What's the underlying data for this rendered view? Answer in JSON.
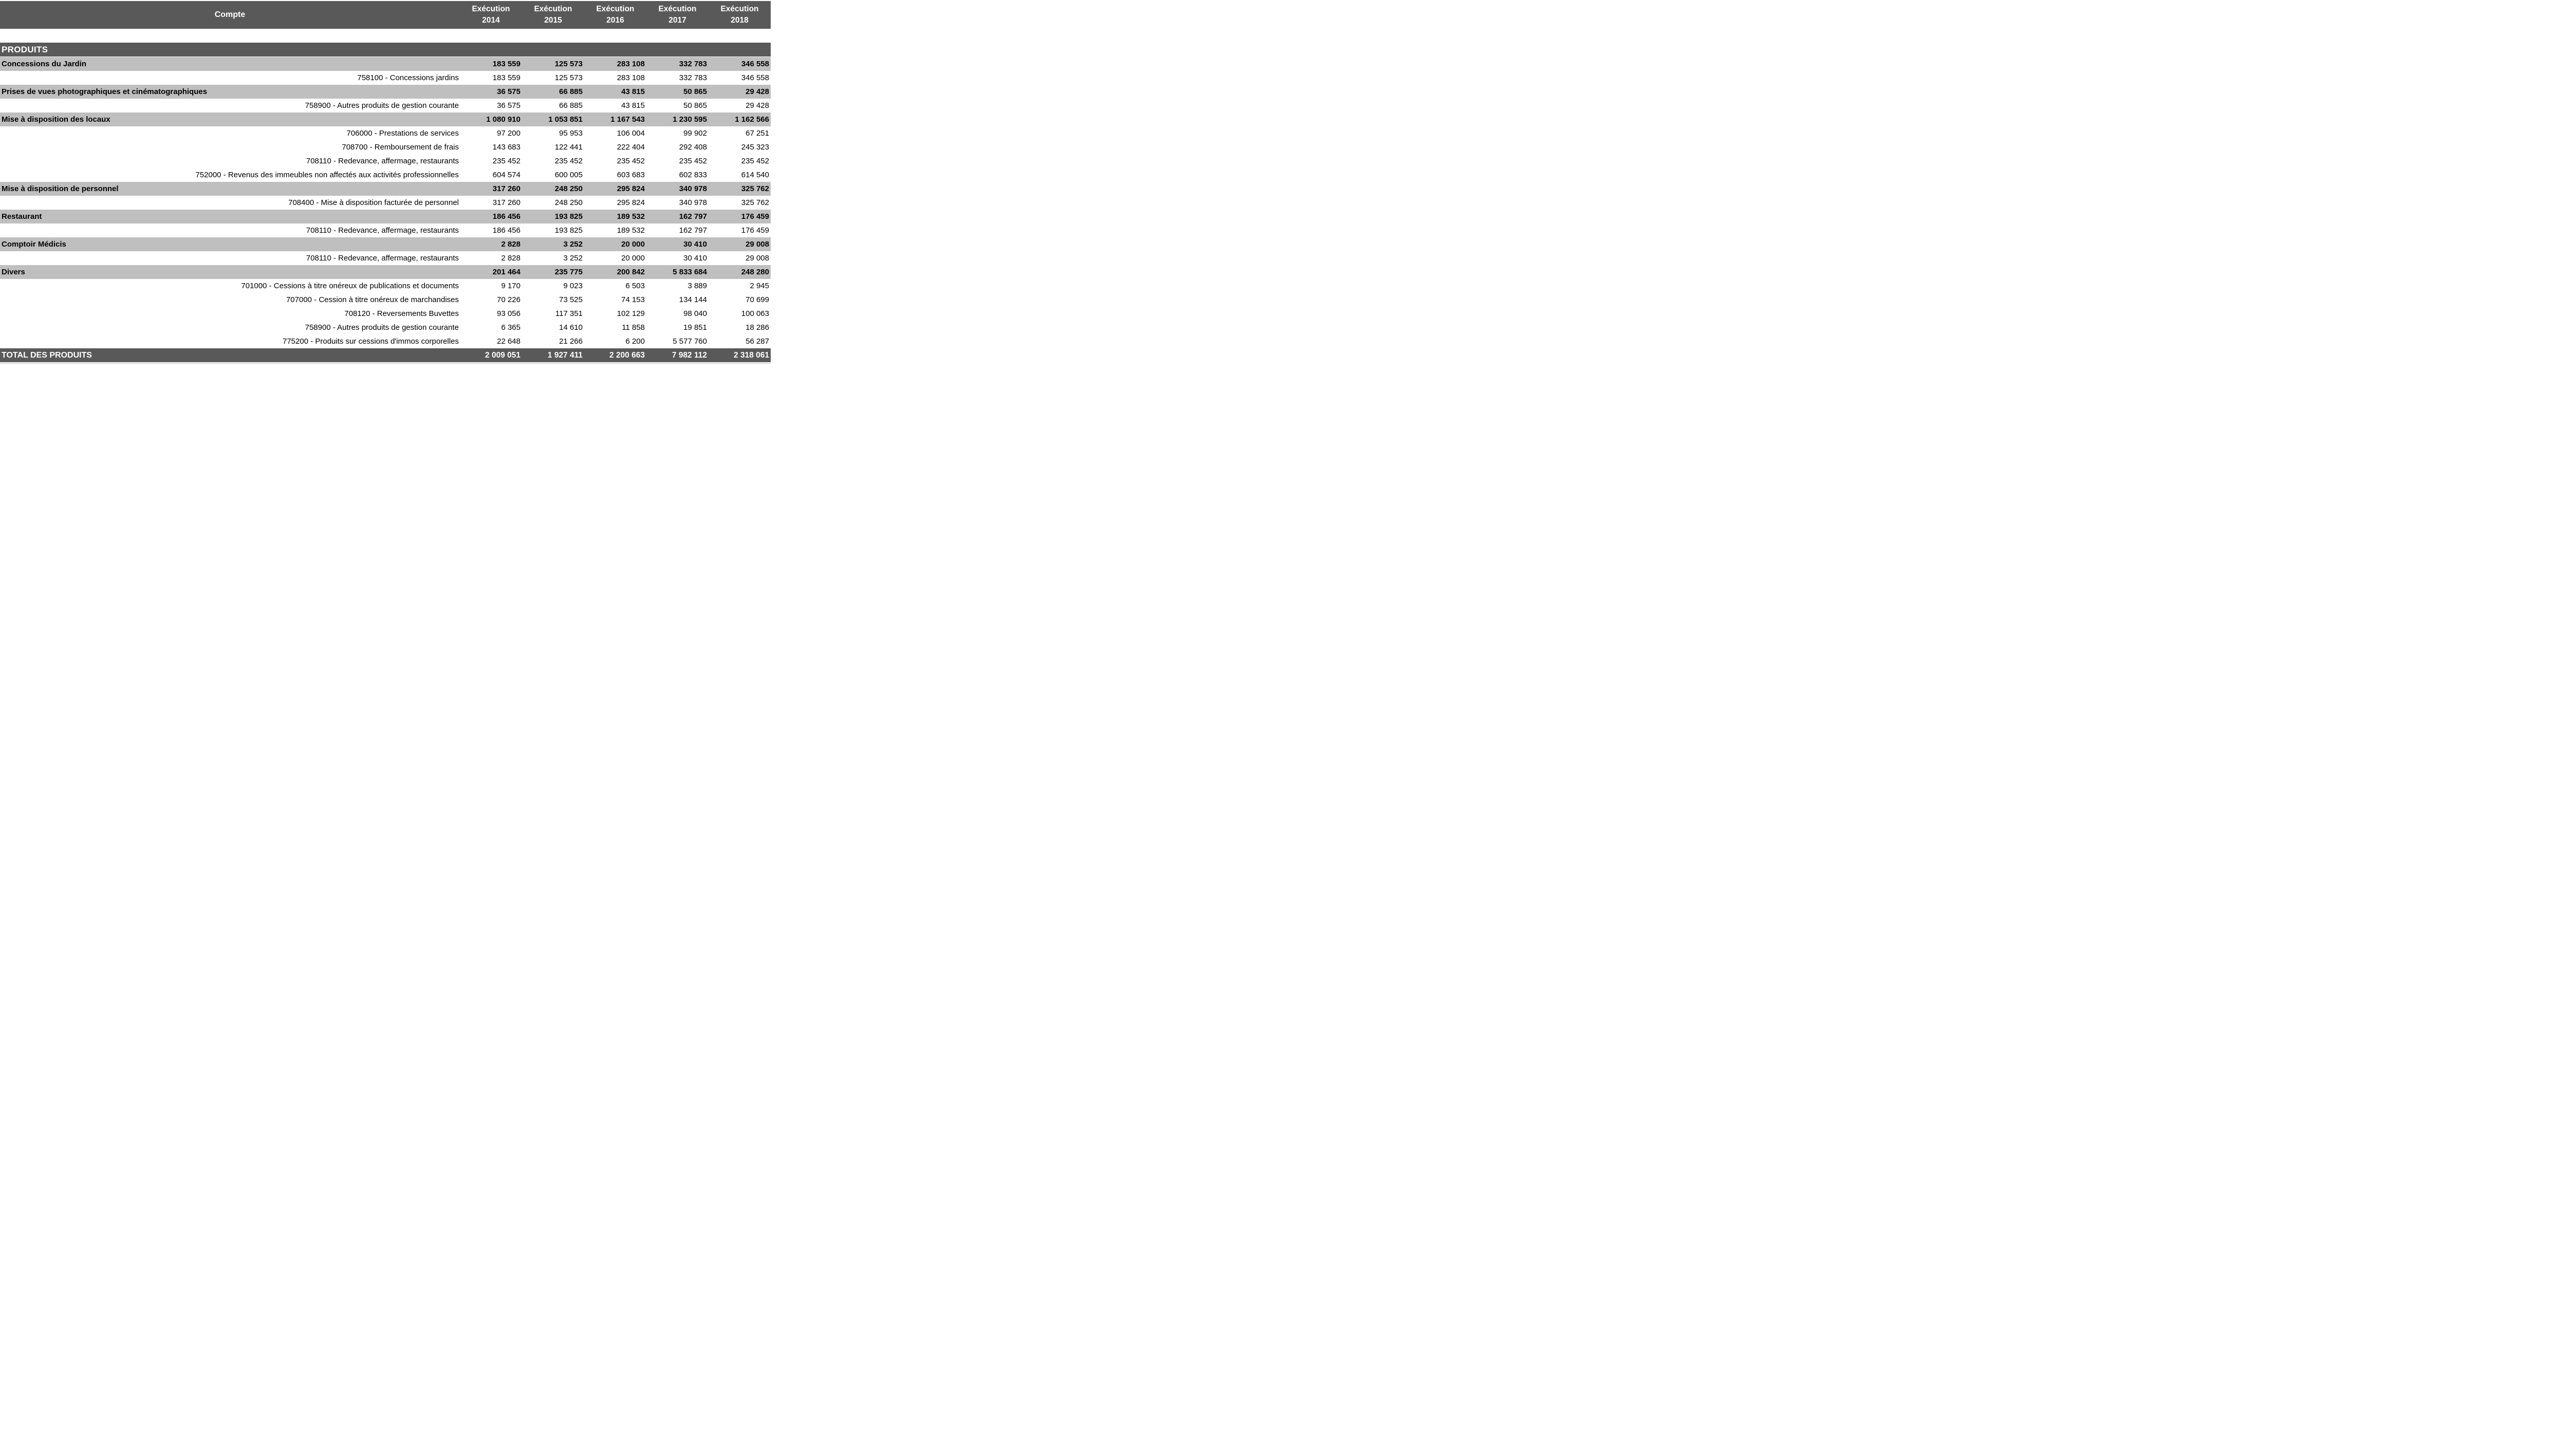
{
  "colors": {
    "header_bg": "#595959",
    "section_bg": "#595959",
    "total_bg": "#595959",
    "category_row_bg": "#bfbfbf",
    "detail_row_bg": "#ffffff",
    "header_text": "#ffffff",
    "body_text": "#000000",
    "bottom_rule": "#bfbfbf"
  },
  "table": {
    "account_column_header": "Compte",
    "execution_label": "Exécution",
    "years": [
      "2014",
      "2015",
      "2016",
      "2017",
      "2018"
    ],
    "section_header": "PRODUITS",
    "rows": [
      {
        "type": "category",
        "label": "Concessions du Jardin",
        "values": [
          "183 559",
          "125 573",
          "283 108",
          "332 783",
          "346 558"
        ]
      },
      {
        "type": "detail",
        "label": "758100 - Concessions jardins",
        "values": [
          "183 559",
          "125 573",
          "283 108",
          "332 783",
          "346 558"
        ]
      },
      {
        "type": "category",
        "label": "Prises de vues photographiques et cinématographiques",
        "values": [
          "36 575",
          "66 885",
          "43 815",
          "50 865",
          "29 428"
        ]
      },
      {
        "type": "detail",
        "label": "758900 - Autres produits de gestion courante",
        "values": [
          "36 575",
          "66 885",
          "43 815",
          "50 865",
          "29 428"
        ]
      },
      {
        "type": "category",
        "label": "Mise à disposition des locaux",
        "values": [
          "1 080 910",
          "1 053 851",
          "1 167 543",
          "1 230 595",
          "1 162 566"
        ]
      },
      {
        "type": "detail",
        "label": "706000 - Prestations de services",
        "values": [
          "97 200",
          "95 953",
          "106 004",
          "99 902",
          "67 251"
        ]
      },
      {
        "type": "detail",
        "label": "708700 - Remboursement de frais",
        "values": [
          "143 683",
          "122 441",
          "222 404",
          "292 408",
          "245 323"
        ]
      },
      {
        "type": "detail",
        "label": "708110 - Redevance, affermage, restaurants",
        "values": [
          "235 452",
          "235 452",
          "235 452",
          "235 452",
          "235 452"
        ]
      },
      {
        "type": "detail",
        "label": "752000 - Revenus des immeubles non affectés aux activités professionnelles",
        "values": [
          "604 574",
          "600 005",
          "603 683",
          "602 833",
          "614 540"
        ]
      },
      {
        "type": "category",
        "label": "Mise à disposition de personnel",
        "values": [
          "317 260",
          "248 250",
          "295 824",
          "340 978",
          "325 762"
        ]
      },
      {
        "type": "detail",
        "label": "708400 - Mise à disposition facturée de personnel",
        "values": [
          "317 260",
          "248 250",
          "295 824",
          "340 978",
          "325 762"
        ]
      },
      {
        "type": "category",
        "label": "Restaurant",
        "values": [
          "186 456",
          "193 825",
          "189 532",
          "162 797",
          "176 459"
        ]
      },
      {
        "type": "detail",
        "label": "708110 - Redevance, affermage, restaurants",
        "values": [
          "186 456",
          "193 825",
          "189 532",
          "162 797",
          "176 459"
        ]
      },
      {
        "type": "category",
        "label": "Comptoir Médicis",
        "values": [
          "2 828",
          "3 252",
          "20 000",
          "30 410",
          "29 008"
        ]
      },
      {
        "type": "detail",
        "label": "708110 - Redevance, affermage, restaurants",
        "values": [
          "2 828",
          "3 252",
          "20 000",
          "30 410",
          "29 008"
        ]
      },
      {
        "type": "category",
        "label": "Divers",
        "values": [
          "201 464",
          "235 775",
          "200 842",
          "5 833 684",
          "248 280"
        ]
      },
      {
        "type": "detail",
        "label": "701000 - Cessions à titre onéreux de publications et documents",
        "values": [
          "9 170",
          "9 023",
          "6 503",
          "3 889",
          "2 945"
        ]
      },
      {
        "type": "detail",
        "label": "707000 - Cession à titre onéreux de marchandises",
        "values": [
          "70 226",
          "73 525",
          "74 153",
          "134 144",
          "70 699"
        ]
      },
      {
        "type": "detail",
        "label": "708120 - Reversements Buvettes",
        "values": [
          "93 056",
          "117 351",
          "102 129",
          "98 040",
          "100 063"
        ]
      },
      {
        "type": "detail",
        "label": "758900 - Autres produits de gestion courante",
        "values": [
          "6 365",
          "14 610",
          "11 858",
          "19 851",
          "18 286"
        ]
      },
      {
        "type": "detail",
        "label": "775200 - Produits sur cessions d'immos corporelles",
        "values": [
          "22 648",
          "21 266",
          "6 200",
          "5 577 760",
          "56 287"
        ]
      }
    ],
    "total_row": {
      "label": "TOTAL DES PRODUITS",
      "values": [
        "2 009 051",
        "1 927 411",
        "2 200 663",
        "7 982 112",
        "2 318 061"
      ]
    }
  }
}
